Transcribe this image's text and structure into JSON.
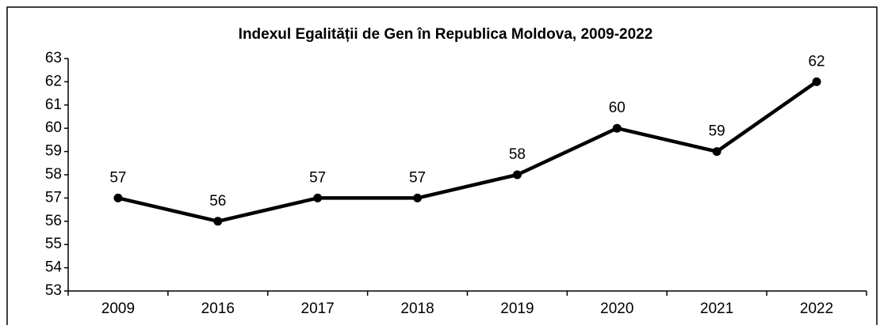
{
  "chart_data": {
    "type": "line",
    "title": "Indexul Egalității de Gen în Republica Moldova, 2009-2022",
    "categories": [
      "2009",
      "2016",
      "2017",
      "2018",
      "2019",
      "2020",
      "2021",
      "2022"
    ],
    "series": [
      {
        "name": "Indexul Egalității de Gen",
        "color": "#000000",
        "values": [
          57,
          56,
          57,
          57,
          58,
          60,
          59,
          62
        ]
      }
    ],
    "ylim": [
      53,
      63
    ],
    "yticks": [
      53,
      54,
      55,
      56,
      57,
      58,
      59,
      60,
      61,
      62,
      63
    ],
    "grid": false,
    "legend": false
  }
}
